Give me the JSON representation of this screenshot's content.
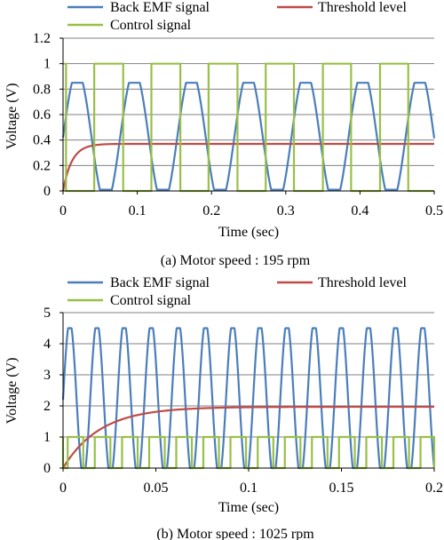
{
  "legend_labels": {
    "back_emf": "Back EMF signal",
    "threshold": "Threshold level",
    "control": "Control signal"
  },
  "colors": {
    "back_emf": "#4a7ebb",
    "threshold": "#be4b48",
    "control": "#98c046",
    "grid": "#808080"
  },
  "chart_data": [
    {
      "type": "line",
      "caption": "(a) Motor speed : 195 rpm",
      "xlabel": "Time (sec)",
      "ylabel": "Voltage (V)",
      "xlim": [
        0,
        0.5
      ],
      "ylim": [
        0,
        1.2
      ],
      "xticks": [
        0,
        0.1,
        0.2,
        0.3,
        0.4,
        0.5
      ],
      "xtick_labels": [
        "0",
        "0.1",
        "0.2",
        "0.3",
        "0.4",
        "0.5"
      ],
      "yticks": [
        0,
        0.2,
        0.4,
        0.6,
        0.8,
        1,
        1.2
      ],
      "ytick_labels": [
        "0",
        "0.2",
        "0.4",
        "0.6",
        "0.8",
        "1",
        "1.2"
      ],
      "grid": "horizontal",
      "series": [
        {
          "name": "Back EMF signal",
          "key": "back_emf",
          "model": "clipped_sine",
          "period": 0.0769,
          "phase": 0.0,
          "center": 0.42,
          "amplitude": 0.52,
          "clip_high": 0.85,
          "clip_low": 0.01
        },
        {
          "name": "Threshold level",
          "key": "threshold",
          "model": "exponential_rise",
          "final": 0.37,
          "tau": 0.012
        },
        {
          "name": "Control signal",
          "key": "control",
          "model": "square",
          "levels": [
            0,
            1
          ],
          "transitions": [
            0.004,
            0.042,
            0.081,
            0.119,
            0.158,
            0.196,
            0.235,
            0.273,
            0.311,
            0.35,
            0.388,
            0.427,
            0.465
          ],
          "start_level": 1
        }
      ]
    },
    {
      "type": "line",
      "caption": "(b) Motor speed : 1025 rpm",
      "xlabel": "Time (sec)",
      "ylabel": "Voltage (V)",
      "xlim": [
        0,
        0.2
      ],
      "ylim": [
        0,
        5
      ],
      "xticks": [
        0,
        0.05,
        0.1,
        0.15,
        0.2
      ],
      "xtick_labels": [
        "0",
        "0.05",
        "0.1",
        "0.15",
        "0.2"
      ],
      "yticks": [
        0,
        1,
        2,
        3,
        4,
        5
      ],
      "ytick_labels": [
        "0",
        "1",
        "2",
        "3",
        "4",
        "5"
      ],
      "grid": "horizontal",
      "series": [
        {
          "name": "Back EMF signal",
          "key": "back_emf",
          "model": "clipped_sine",
          "period": 0.01463,
          "phase": 0.0,
          "center": 2.2,
          "amplitude": 2.5,
          "clip_high": 4.5,
          "clip_low": 0.0
        },
        {
          "name": "Threshold level",
          "key": "threshold",
          "model": "exponential_rise",
          "final": 1.97,
          "tau": 0.02
        },
        {
          "name": "Control signal",
          "key": "control",
          "model": "square",
          "levels": [
            0,
            1
          ],
          "transitions": [
            0.0,
            0.0025,
            0.0109,
            0.0171,
            0.0255,
            0.0318,
            0.0402,
            0.0464,
            0.0548,
            0.061,
            0.0694,
            0.0756,
            0.084,
            0.0902,
            0.0986,
            0.1049,
            0.1133,
            0.1195,
            0.1279,
            0.1341,
            0.1425,
            0.1487,
            0.1572,
            0.1634,
            0.1718,
            0.178,
            0.1864,
            0.1926,
            0.2
          ],
          "start_level": 1
        }
      ]
    }
  ]
}
